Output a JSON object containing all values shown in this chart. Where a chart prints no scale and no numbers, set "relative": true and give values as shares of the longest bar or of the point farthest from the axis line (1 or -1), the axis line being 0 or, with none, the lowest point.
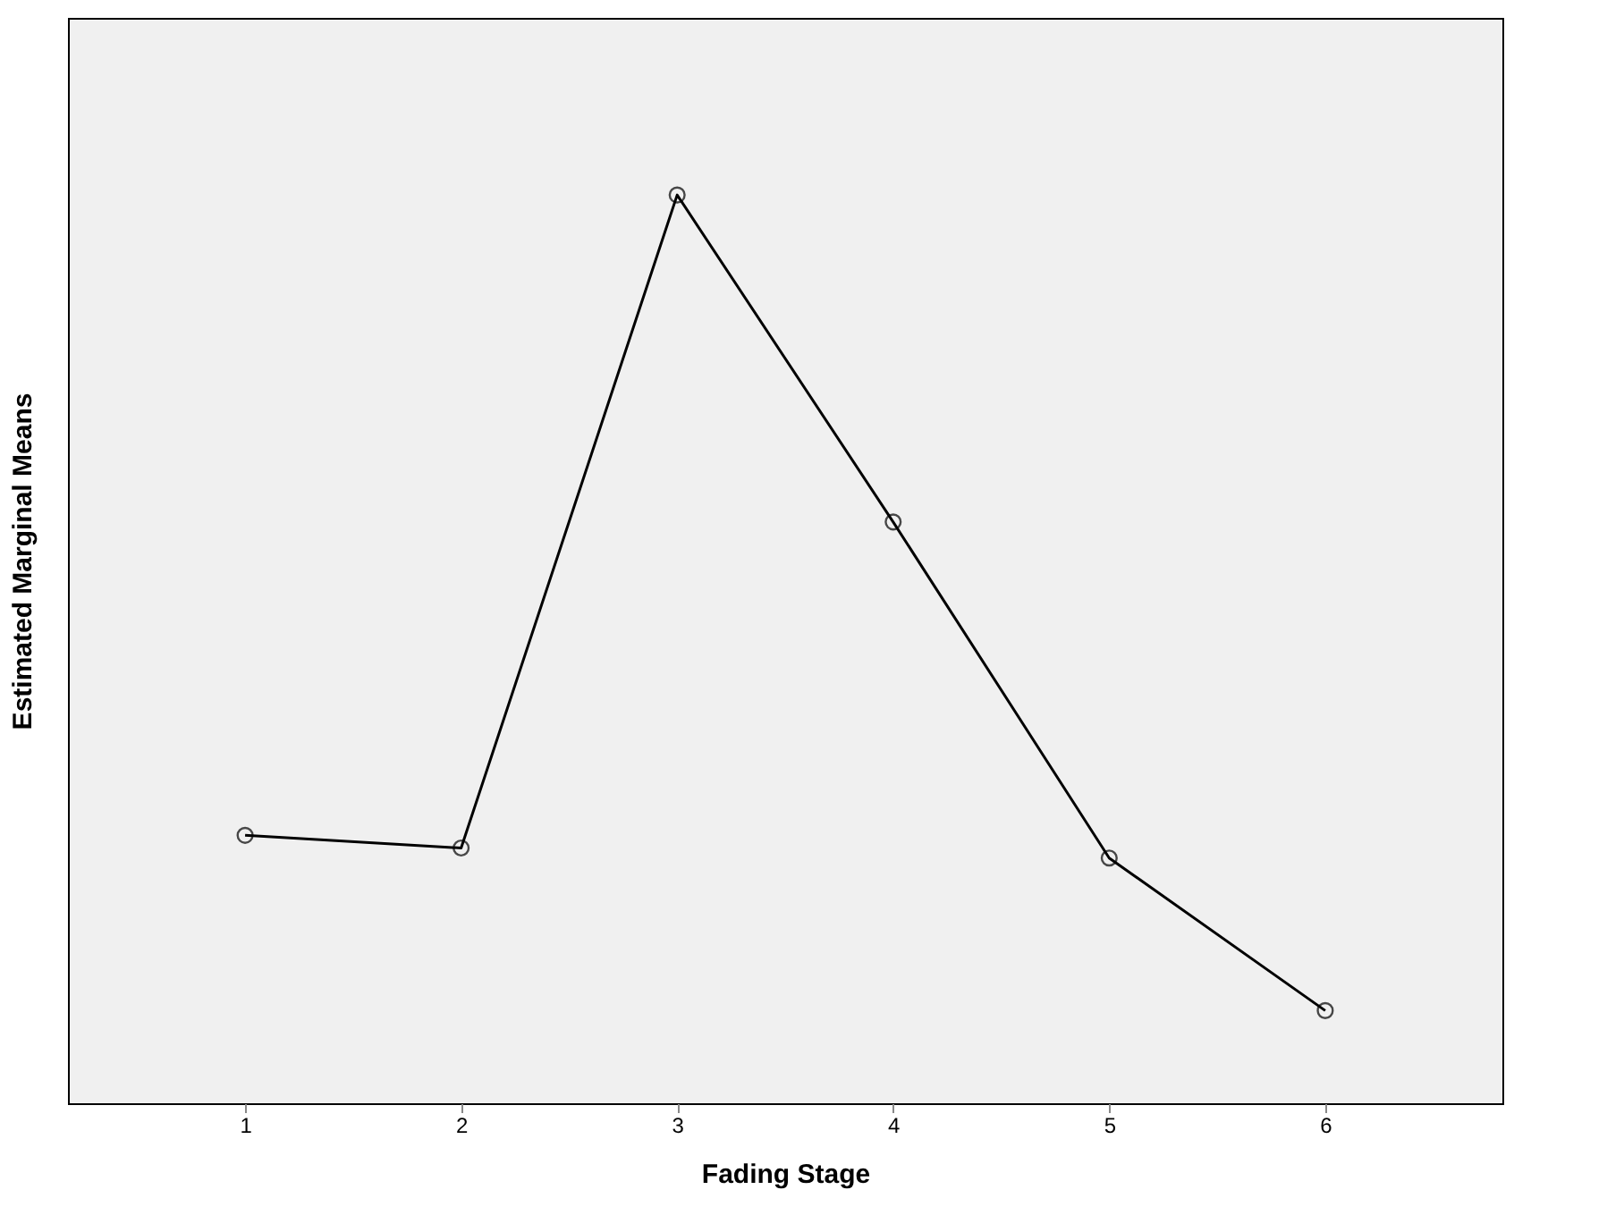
{
  "chart_data": {
    "type": "line",
    "xlabel": "Fading Stage",
    "ylabel": "Estimated Marginal Means",
    "categories": [
      "1",
      "2",
      "3",
      "4",
      "5",
      "6"
    ],
    "series": [
      {
        "color": "#000000",
        "values": [
          0.295,
          0.281,
          1.0,
          0.64,
          0.27,
          0.102
        ]
      }
    ],
    "relative": true,
    "marker": "circle",
    "line_style": "solid",
    "grid": false
  }
}
